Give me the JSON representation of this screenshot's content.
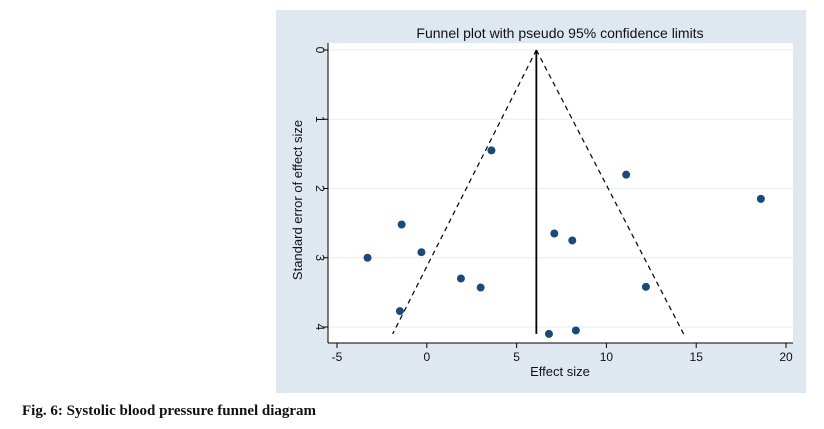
{
  "caption": "Fig. 6: Systolic blood pressure funnel diagram",
  "colors": {
    "panel_background": "#dfe8f0",
    "plot_background": "#ffffff",
    "gridline": "#e6ecf2",
    "marker": "#1b4a7a",
    "lines": "#000000"
  },
  "chart_data": {
    "type": "scatter",
    "title": "Funnel plot with pseudo 95% confidence limits",
    "xlabel": "Effect size",
    "ylabel": "Standard error of effect size",
    "xlim": [
      -5,
      20
    ],
    "ylim": [
      0,
      4
    ],
    "y_reversed": true,
    "x_ticks": [
      -5,
      0,
      5,
      10,
      15,
      20
    ],
    "y_ticks": [
      0,
      1,
      2,
      3,
      4
    ],
    "x_tick_labels": [
      "-5",
      "0",
      "5",
      "10",
      "15",
      "20"
    ],
    "y_tick_labels": [
      "0",
      "1",
      "2",
      "3",
      "4"
    ],
    "grid": true,
    "pooled_effect": 6.1,
    "funnel": {
      "apex": [
        6.1,
        0
      ],
      "left_end": [
        -1.9,
        4.1
      ],
      "right_end": [
        14.3,
        4.1
      ]
    },
    "points": [
      {
        "x": 3.6,
        "y": 1.45
      },
      {
        "x": -1.4,
        "y": 2.52
      },
      {
        "x": -0.3,
        "y": 2.92
      },
      {
        "x": -3.3,
        "y": 3.0
      },
      {
        "x": 1.9,
        "y": 3.3
      },
      {
        "x": 3.0,
        "y": 3.43
      },
      {
        "x": -1.5,
        "y": 3.77
      },
      {
        "x": 7.1,
        "y": 2.65
      },
      {
        "x": 8.1,
        "y": 2.75
      },
      {
        "x": 11.1,
        "y": 1.8
      },
      {
        "x": 18.6,
        "y": 2.15
      },
      {
        "x": 12.2,
        "y": 3.42
      },
      {
        "x": 6.8,
        "y": 4.1
      },
      {
        "x": 8.3,
        "y": 4.05
      }
    ]
  }
}
